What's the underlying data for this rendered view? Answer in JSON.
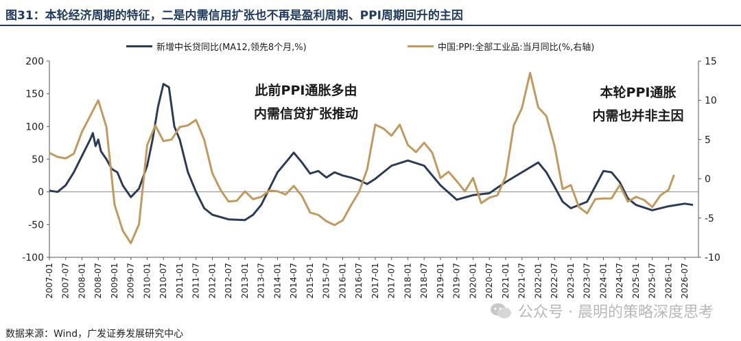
{
  "page": {
    "title": "图31：本轮经济周期的特征，二是内需信用扩张也不再是盈利周期、PPI周期回升的主因",
    "source": "数据来源：Wind，广发证券发展研究中心",
    "watermark": "公众号 · 晨明的策略深度思考"
  },
  "colors": {
    "series1": "#2b3a55",
    "series2": "#c19a5b",
    "axis": "#555555",
    "zero": "#888888"
  },
  "chart_data": {
    "type": "line",
    "x_ticks": [
      "2007-01",
      "2007-07",
      "2008-01",
      "2008-07",
      "2009-01",
      "2009-07",
      "2010-01",
      "2010-07",
      "2011-01",
      "2011-07",
      "2012-01",
      "2012-07",
      "2013-01",
      "2013-07",
      "2014-01",
      "2014-07",
      "2015-01",
      "2015-07",
      "2016-01",
      "2016-07",
      "2017-01",
      "2017-07",
      "2018-01",
      "2018-07",
      "2019-01",
      "2019-07",
      "2020-01",
      "2020-07",
      "2021-01",
      "2021-07",
      "2022-01",
      "2022-07",
      "2023-01",
      "2023-07",
      "2024-01",
      "2024-07",
      "2025-01",
      "2025-07",
      "2026-01",
      "2026-07"
    ],
    "y_left": {
      "min": -100,
      "max": 200,
      "ticks": [
        -100,
        -50,
        0,
        50,
        100,
        150,
        200
      ]
    },
    "y_right": {
      "min": -10,
      "max": 15,
      "ticks": [
        -10,
        -5,
        0,
        5,
        10,
        15
      ]
    },
    "series": [
      {
        "name": "新增中长贷同比(MA12,领先8个月,%)",
        "axis": "left",
        "points": [
          [
            "2007-01",
            2
          ],
          [
            "2007-04",
            0
          ],
          [
            "2007-07",
            10
          ],
          [
            "2007-10",
            30
          ],
          [
            "2008-01",
            55
          ],
          [
            "2008-04",
            80
          ],
          [
            "2008-05",
            90
          ],
          [
            "2008-06",
            70
          ],
          [
            "2008-07",
            80
          ],
          [
            "2008-08",
            62
          ],
          [
            "2008-10",
            50
          ],
          [
            "2008-12",
            35
          ],
          [
            "2009-02",
            30
          ],
          [
            "2009-04",
            10
          ],
          [
            "2009-07",
            -8
          ],
          [
            "2009-10",
            5
          ],
          [
            "2010-01",
            40
          ],
          [
            "2010-03",
            80
          ],
          [
            "2010-05",
            130
          ],
          [
            "2010-07",
            165
          ],
          [
            "2010-09",
            160
          ],
          [
            "2010-11",
            100
          ],
          [
            "2011-01",
            80
          ],
          [
            "2011-04",
            30
          ],
          [
            "2011-07",
            0
          ],
          [
            "2011-10",
            -25
          ],
          [
            "2012-01",
            -35
          ],
          [
            "2012-07",
            -42
          ],
          [
            "2013-01",
            -43
          ],
          [
            "2013-04",
            -35
          ],
          [
            "2013-07",
            -20
          ],
          [
            "2013-10",
            5
          ],
          [
            "2014-01",
            30
          ],
          [
            "2014-04",
            45
          ],
          [
            "2014-07",
            60
          ],
          [
            "2014-10",
            45
          ],
          [
            "2015-01",
            28
          ],
          [
            "2015-04",
            32
          ],
          [
            "2015-07",
            22
          ],
          [
            "2015-10",
            30
          ],
          [
            "2016-01",
            25
          ],
          [
            "2016-04",
            22
          ],
          [
            "2016-07",
            18
          ],
          [
            "2016-10",
            12
          ],
          [
            "2017-01",
            20
          ],
          [
            "2017-07",
            40
          ],
          [
            "2018-01",
            48
          ],
          [
            "2018-07",
            40
          ],
          [
            "2019-01",
            10
          ],
          [
            "2019-07",
            -12
          ],
          [
            "2020-01",
            -5
          ],
          [
            "2020-07",
            -2
          ],
          [
            "2021-01",
            15
          ],
          [
            "2021-07",
            30
          ],
          [
            "2022-01",
            45
          ],
          [
            "2022-04",
            30
          ],
          [
            "2022-07",
            8
          ],
          [
            "2022-10",
            -15
          ],
          [
            "2023-01",
            -25
          ],
          [
            "2023-07",
            -15
          ],
          [
            "2024-01",
            32
          ],
          [
            "2024-04",
            30
          ],
          [
            "2024-07",
            15
          ],
          [
            "2024-10",
            -10
          ],
          [
            "2025-01",
            -20
          ],
          [
            "2025-07",
            -28
          ],
          [
            "2026-01",
            -22
          ],
          [
            "2026-07",
            -18
          ],
          [
            "2026-10",
            -20
          ]
        ]
      },
      {
        "name": "中国:PPI:全部工业品:当月同比(%,右轴)",
        "axis": "right",
        "points": [
          [
            "2007-01",
            3.3
          ],
          [
            "2007-04",
            2.8
          ],
          [
            "2007-07",
            2.6
          ],
          [
            "2007-10",
            3.2
          ],
          [
            "2008-01",
            6
          ],
          [
            "2008-04",
            8
          ],
          [
            "2008-07",
            10
          ],
          [
            "2008-10",
            6.6
          ],
          [
            "2009-01",
            -3.3
          ],
          [
            "2009-04",
            -6.6
          ],
          [
            "2009-07",
            -8.2
          ],
          [
            "2009-10",
            -5.8
          ],
          [
            "2010-01",
            4.3
          ],
          [
            "2010-04",
            6.8
          ],
          [
            "2010-07",
            4.8
          ],
          [
            "2010-10",
            5
          ],
          [
            "2011-01",
            6.6
          ],
          [
            "2011-04",
            6.8
          ],
          [
            "2011-07",
            7.5
          ],
          [
            "2011-10",
            5
          ],
          [
            "2012-01",
            0.7
          ],
          [
            "2012-04",
            -1.4
          ],
          [
            "2012-07",
            -2.9
          ],
          [
            "2012-10",
            -2.8
          ],
          [
            "2013-01",
            -1.6
          ],
          [
            "2013-04",
            -2.6
          ],
          [
            "2013-07",
            -2.3
          ],
          [
            "2013-10",
            -1.5
          ],
          [
            "2014-01",
            -1.6
          ],
          [
            "2014-04",
            -2
          ],
          [
            "2014-07",
            -0.9
          ],
          [
            "2014-10",
            -2.2
          ],
          [
            "2015-01",
            -4.3
          ],
          [
            "2015-04",
            -4.6
          ],
          [
            "2015-07",
            -5.4
          ],
          [
            "2015-10",
            -5.9
          ],
          [
            "2016-01",
            -5.3
          ],
          [
            "2016-04",
            -3.4
          ],
          [
            "2016-07",
            -1.7
          ],
          [
            "2016-10",
            1.2
          ],
          [
            "2017-01",
            6.9
          ],
          [
            "2017-04",
            6.4
          ],
          [
            "2017-07",
            5.5
          ],
          [
            "2017-10",
            6.9
          ],
          [
            "2018-01",
            4.3
          ],
          [
            "2018-04",
            3.4
          ],
          [
            "2018-07",
            4.6
          ],
          [
            "2018-10",
            3.3
          ],
          [
            "2019-01",
            0.1
          ],
          [
            "2019-04",
            0.9
          ],
          [
            "2019-07",
            -0.3
          ],
          [
            "2019-10",
            -1.6
          ],
          [
            "2020-01",
            0.1
          ],
          [
            "2020-04",
            -3.1
          ],
          [
            "2020-07",
            -2.4
          ],
          [
            "2020-10",
            -2.1
          ],
          [
            "2021-01",
            0.3
          ],
          [
            "2021-04",
            6.8
          ],
          [
            "2021-07",
            9
          ],
          [
            "2021-10",
            13.5
          ],
          [
            "2022-01",
            9.1
          ],
          [
            "2022-04",
            8
          ],
          [
            "2022-07",
            4.2
          ],
          [
            "2022-10",
            -1.3
          ],
          [
            "2023-01",
            -0.8
          ],
          [
            "2023-04",
            -3.6
          ],
          [
            "2023-07",
            -4.4
          ],
          [
            "2023-10",
            -2.6
          ],
          [
            "2024-01",
            -2.5
          ],
          [
            "2024-04",
            -2.5
          ],
          [
            "2024-07",
            -0.8
          ],
          [
            "2024-10",
            -2.9
          ],
          [
            "2025-01",
            -2.3
          ],
          [
            "2025-04",
            -2.7
          ],
          [
            "2025-07",
            -3.6
          ],
          [
            "2025-10",
            -2.1
          ],
          [
            "2026-01",
            -1.4
          ],
          [
            "2026-03",
            0.5
          ]
        ]
      }
    ],
    "annotations": [
      {
        "lines": [
          "此前PPI通胀多由",
          "内需信贷扩张推动"
        ]
      },
      {
        "lines": [
          "本轮PPI通胀",
          "内需也并非主因"
        ]
      }
    ]
  }
}
